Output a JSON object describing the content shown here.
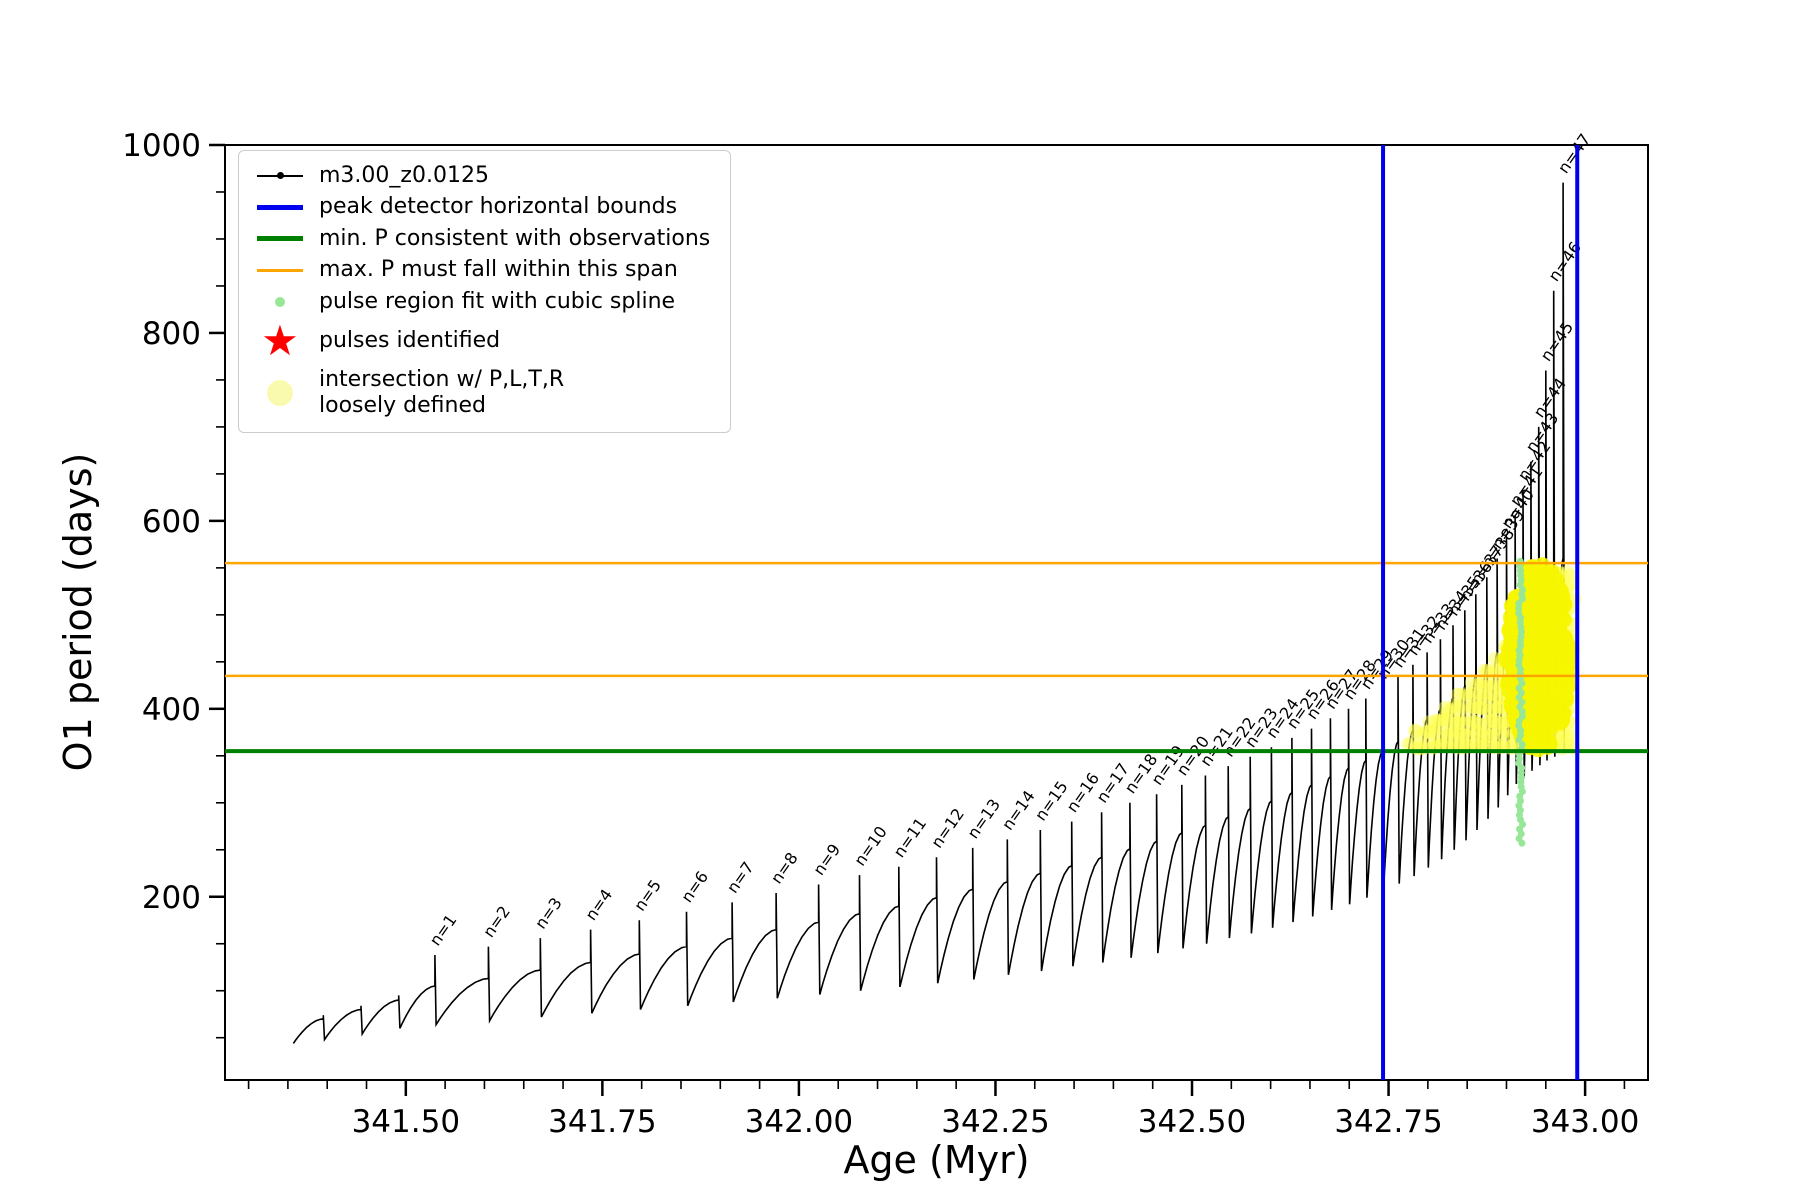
{
  "chart_data": {
    "type": "line",
    "title": "",
    "xlabel": "Age (Myr)",
    "ylabel": "O1 period (days)",
    "xlim": [
      341.27,
      343.08
    ],
    "ylim": [
      5,
      1000
    ],
    "grid": false,
    "legend_position": "upper left",
    "x_major_ticks": [
      341.5,
      341.75,
      342.0,
      342.25,
      342.5,
      342.75,
      343.0
    ],
    "x_tick_labels": [
      "341.50",
      "341.75",
      "342.00",
      "342.25",
      "342.50",
      "342.75",
      "343.00"
    ],
    "x_minor_step": 0.05,
    "y_major_ticks": [
      200,
      400,
      600,
      800,
      1000
    ],
    "y_minor_step": 50,
    "series_name": "m3.00_z0.0125",
    "pulse_label_prefix": "n=",
    "curve_start": {
      "age": 341.357,
      "period": 44
    },
    "pre_cycles": [
      {
        "age": 341.395,
        "shoulder": 70,
        "peak": 74,
        "dip_after": 48
      },
      {
        "age": 341.443,
        "shoulder": 80,
        "peak": 84,
        "dip_after": 54
      },
      {
        "age": 341.491,
        "shoulder": 90,
        "peak": 95,
        "dip_after": 60
      }
    ],
    "pulses": {
      "n": [
        1,
        2,
        3,
        4,
        5,
        6,
        7,
        8,
        9,
        10,
        11,
        12,
        13,
        14,
        15,
        16,
        17,
        18,
        19,
        20,
        21,
        22,
        23,
        24,
        25,
        26,
        27,
        28,
        29,
        30,
        31,
        32,
        33,
        34,
        35,
        36,
        37,
        38,
        39,
        40,
        41,
        42,
        43,
        44,
        45,
        46,
        47
      ],
      "age": [
        341.537,
        341.605,
        341.671,
        341.735,
        341.797,
        341.857,
        341.915,
        341.971,
        342.025,
        342.077,
        342.127,
        342.175,
        342.221,
        342.265,
        342.307,
        342.347,
        342.385,
        342.421,
        342.455,
        342.487,
        342.517,
        342.546,
        342.574,
        342.601,
        342.627,
        342.652,
        342.676,
        342.699,
        342.721,
        342.742,
        342.762,
        342.781,
        342.799,
        342.816,
        342.832,
        342.847,
        342.861,
        342.875,
        342.888,
        342.9,
        342.911,
        342.921,
        342.931,
        342.941,
        342.95,
        342.96,
        342.972
      ],
      "shoulder": [
        105,
        113,
        122,
        130,
        139,
        147,
        156,
        165,
        173,
        182,
        190,
        199,
        208,
        216,
        225,
        233,
        242,
        251,
        259,
        268,
        276,
        285,
        294,
        302,
        311,
        319,
        328,
        337,
        345,
        354,
        365,
        377,
        389,
        400,
        412,
        424,
        436,
        448,
        459,
        471,
        483,
        495,
        507,
        518,
        530,
        545,
        560
      ],
      "peak": [
        138,
        147,
        156,
        165,
        175,
        184,
        194,
        204,
        213,
        223,
        232,
        242,
        252,
        261,
        271,
        280,
        290,
        300,
        309,
        319,
        329,
        339,
        349,
        359,
        369,
        379,
        390,
        400,
        411,
        422,
        434,
        447,
        460,
        474,
        489,
        505,
        522,
        540,
        560,
        582,
        606,
        633,
        663,
        700,
        760,
        845,
        960
      ],
      "dip_after": [
        64,
        68,
        72,
        76,
        80,
        84,
        88,
        92,
        96,
        100,
        104,
        108,
        112,
        117,
        121,
        126,
        130,
        135,
        140,
        145,
        150,
        156,
        161,
        167,
        173,
        179,
        186,
        192,
        199,
        206,
        214,
        222,
        231,
        240,
        250,
        260,
        271,
        283,
        295,
        308,
        320,
        328,
        334,
        340,
        345,
        349,
        353
      ]
    },
    "vlines": {
      "x": [
        342.743,
        342.99
      ],
      "color": "#0000f0",
      "label": "peak detector horizontal bounds"
    },
    "hlines": [
      {
        "y": 355,
        "color": "#008000",
        "width": 4,
        "label": "min. P consistent with observations"
      },
      {
        "y": 435,
        "color": "#ffa500",
        "width": 2.5,
        "label": "max. P must fall within this span"
      },
      {
        "y": 555,
        "color": "#ffa500",
        "width": 2.5,
        "label": "max. P must fall within this span"
      }
    ],
    "spline_fit_dots": {
      "x": 342.918,
      "y_min": 257,
      "y_max": 558,
      "color": "#98e698",
      "label": "pulse region fit with cubic spline"
    },
    "intersection_band": {
      "x_min": 342.775,
      "x_max": 342.985,
      "y_min": 355,
      "y_cap": 556,
      "color": "#ffff54"
    },
    "intersection_blob": {
      "x_center": 342.941,
      "x_radius": 0.041,
      "y_center": 455,
      "y_radius": 100,
      "color": "#f6f600"
    }
  },
  "legend": {
    "items": [
      {
        "label": "m3.00_z0.0125",
        "marker": "line-dot",
        "color": "#000000"
      },
      {
        "label": "peak detector horizontal bounds",
        "marker": "thick-line",
        "color": "#0000f0"
      },
      {
        "label": "min. P consistent with observations",
        "marker": "thick-line",
        "color": "#008000"
      },
      {
        "label": "max. P must fall within this span",
        "marker": "line",
        "color": "#ffa500"
      },
      {
        "label": "pulse region fit with cubic spline",
        "marker": "dot-small",
        "color": "#98e698"
      },
      {
        "label": "pulses identified",
        "marker": "star",
        "color": "#ff0000"
      },
      {
        "label": "intersection w/ P,L,T,R\nloosely defined",
        "marker": "dot-large",
        "color": "#fafaae"
      }
    ]
  }
}
